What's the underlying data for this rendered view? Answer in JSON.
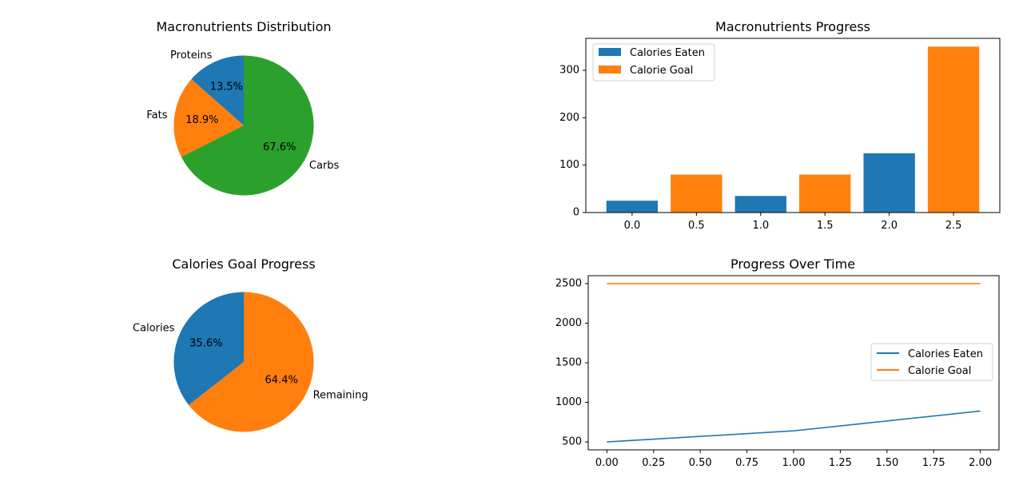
{
  "colors": {
    "blue": "#1f77b4",
    "orange": "#ff7f0e",
    "green": "#2ca02c"
  },
  "chart_data": [
    {
      "id": "macros-pie",
      "type": "pie",
      "title": "Macronutrients Distribution",
      "labels": [
        "Proteins",
        "Fats",
        "Carbs"
      ],
      "percent_labels": [
        "13.5%",
        "18.9%",
        "67.6%"
      ],
      "values": [
        13.5,
        18.9,
        67.6
      ],
      "colors": [
        "#1f77b4",
        "#ff7f0e",
        "#2ca02c"
      ],
      "start_angle": 90
    },
    {
      "id": "macros-bar",
      "type": "bar",
      "title": "Macronutrients Progress",
      "series": [
        {
          "name": "Calories Eaten",
          "color": "#1f77b4",
          "x": [
            0.0,
            1.0,
            2.0
          ],
          "values": [
            25,
            35,
            125
          ]
        },
        {
          "name": "Calorie Goal",
          "color": "#ff7f0e",
          "x": [
            0.5,
            1.5,
            2.5
          ],
          "values": [
            80,
            80,
            350
          ]
        }
      ],
      "bar_width": 0.4,
      "xlim": [
        -0.36,
        2.86
      ],
      "ylim": [
        0,
        367.5
      ],
      "xticks": [
        0.0,
        0.5,
        1.0,
        1.5,
        2.0,
        2.5
      ],
      "xtick_labels": [
        "0.0",
        "0.5",
        "1.0",
        "1.5",
        "2.0",
        "2.5"
      ],
      "yticks": [
        0,
        100,
        200,
        300
      ],
      "ytick_labels": [
        "0",
        "100",
        "200",
        "300"
      ],
      "legend": "top-left"
    },
    {
      "id": "calories-pie",
      "type": "pie",
      "title": "Calories Goal Progress",
      "labels": [
        "Calories",
        "Remaining"
      ],
      "percent_labels": [
        "35.6%",
        "64.4%"
      ],
      "values": [
        35.6,
        64.4
      ],
      "colors": [
        "#1f77b4",
        "#ff7f0e"
      ],
      "start_angle": 90
    },
    {
      "id": "progress-line",
      "type": "line",
      "title": "Progress Over Time",
      "series": [
        {
          "name": "Calories Eaten",
          "color": "#1f77b4",
          "x": [
            0,
            1,
            2
          ],
          "values": [
            500,
            640,
            890
          ]
        },
        {
          "name": "Calorie Goal",
          "color": "#ff7f0e",
          "x": [
            0,
            1,
            2
          ],
          "values": [
            2500,
            2500,
            2500
          ]
        }
      ],
      "xlim": [
        -0.1,
        2.1
      ],
      "ylim": [
        400,
        2600
      ],
      "xticks": [
        0,
        0.25,
        0.5,
        0.75,
        1.0,
        1.25,
        1.5,
        1.75,
        2.0
      ],
      "xtick_labels": [
        "0.00",
        "0.25",
        "0.50",
        "0.75",
        "1.00",
        "1.25",
        "1.50",
        "1.75",
        "2.00"
      ],
      "yticks": [
        500,
        1000,
        1500,
        2000,
        2500
      ],
      "ytick_labels": [
        "500",
        "1000",
        "1500",
        "2000",
        "2500"
      ],
      "legend": "center-right"
    }
  ]
}
